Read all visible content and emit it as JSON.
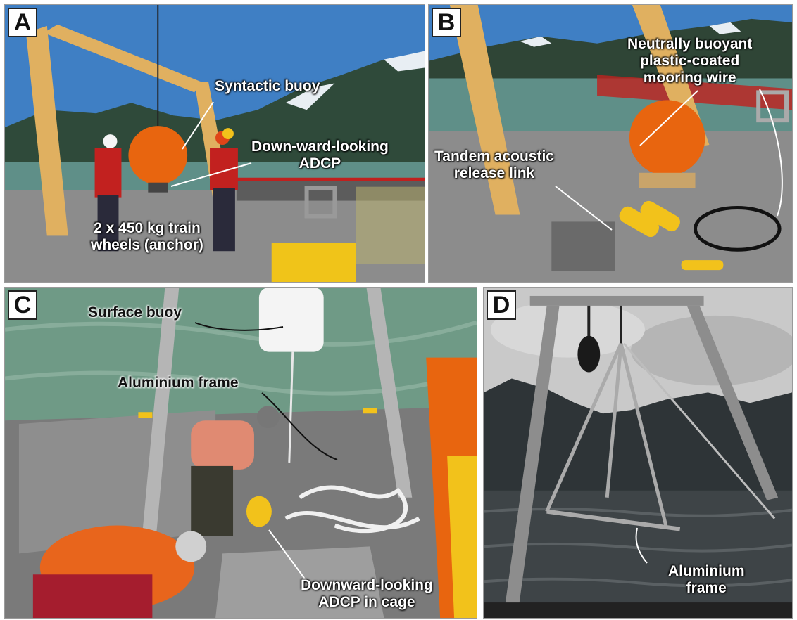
{
  "figure": {
    "panels": [
      {
        "letter": "A",
        "labels": {
          "syntactic_buoy": "Syntactic buoy",
          "adcp_line1": "Down-ward-looking",
          "adcp_line2": "ADCP",
          "anchor_line1": "2 x 450 kg train",
          "anchor_line2": "wheels (anchor)"
        }
      },
      {
        "letter": "B",
        "labels": {
          "wire_line1": "Neutrally buoyant",
          "wire_line2": "plastic-coated",
          "wire_line3": "mooring wire",
          "release_line1": "Tandem acoustic",
          "release_line2": "release link"
        }
      },
      {
        "letter": "C",
        "labels": {
          "surface_buoy": "Surface buoy",
          "aluminium_frame": "Aluminium frame",
          "cage_line1": "Downward-looking",
          "cage_line2": "ADCP in cage"
        }
      },
      {
        "letter": "D",
        "labels": {
          "frame_line1": "Aluminium",
          "frame_line2": "frame"
        }
      }
    ],
    "colors": {
      "buoy_orange": "#e8650f",
      "crane_tan": "#e0b060",
      "sky_blue": "#3f7fc4",
      "water_teal": "#5f8f88",
      "deck_grey": "#8c8c8c"
    }
  }
}
